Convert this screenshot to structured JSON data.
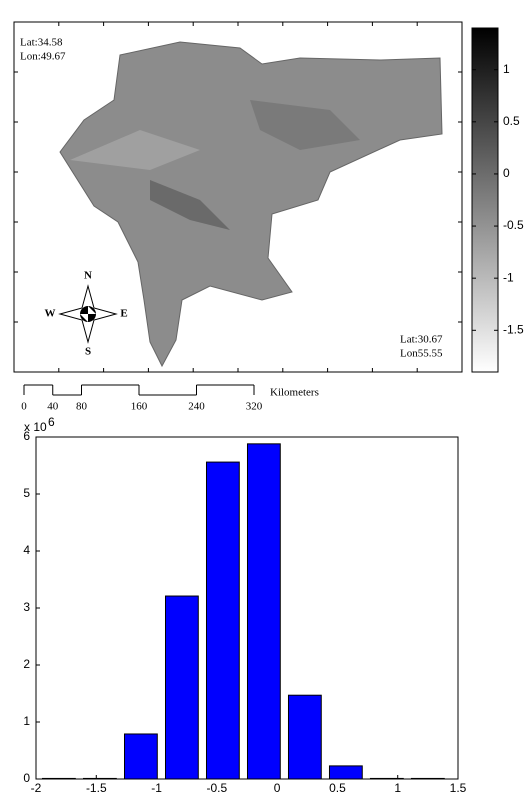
{
  "map": {
    "annotations": [
      "Lat:34.58",
      "Lon:49.67",
      "Lat:30.67",
      "Lon55.55"
    ],
    "compass": {
      "north": "N",
      "south": "S",
      "east": "E",
      "west": "W"
    },
    "scale_bar": {
      "ticks": [
        0,
        40,
        80,
        160,
        240,
        320
      ],
      "unit": "Kilometers"
    }
  },
  "chart_data": [
    {
      "type": "colorbar",
      "clim": [
        -1.9,
        1.4
      ],
      "ticks": [
        1,
        0.5,
        0,
        -0.5,
        -1,
        -1.5
      ],
      "colors": [
        "#ffffff",
        "#000000"
      ]
    },
    {
      "type": "bar",
      "x": [
        -1.81,
        -1.47,
        -1.13,
        -0.79,
        -0.45,
        -0.11,
        0.23,
        0.57,
        0.91,
        1.25
      ],
      "values": [
        0.01,
        0.01,
        0.79,
        3.21,
        5.56,
        5.88,
        1.47,
        0.23,
        0.01,
        0.01
      ],
      "color": "#0000ff",
      "xlim": [
        -2,
        1.5
      ],
      "xticks": [
        -2,
        -1.5,
        -1,
        -0.5,
        0,
        0.5,
        1,
        1.5
      ],
      "ylim": [
        0,
        6
      ],
      "yticks": [
        0,
        1,
        2,
        3,
        4,
        5,
        6
      ],
      "multiplier": {
        "base": "x 10",
        "exponent": "6"
      }
    }
  ]
}
